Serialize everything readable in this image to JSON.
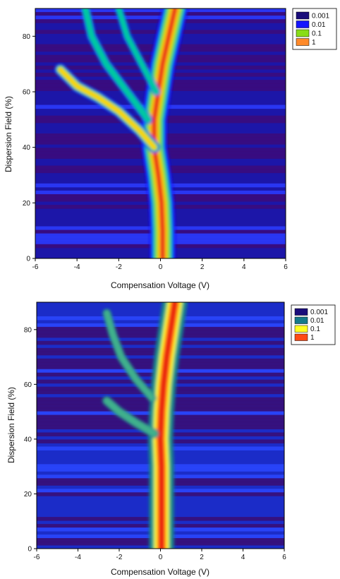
{
  "chart_data": [
    {
      "type": "heatmap",
      "title": "",
      "xlabel": "Compensation Voltage (V)",
      "ylabel": "Dispersion Field (%)",
      "xlim": [
        -6,
        6
      ],
      "ylim": [
        0,
        90
      ],
      "xticks": [
        "-6",
        "-4",
        "-2",
        "0",
        "2",
        "4",
        "6"
      ],
      "yticks": [
        "0",
        "20",
        "40",
        "60",
        "80"
      ],
      "scale": "log",
      "legend_position": "top-right outside",
      "legend": [
        {
          "label": "0.001",
          "color": "#1a0d7a"
        },
        {
          "label": "0.01",
          "color": "#1414ff"
        },
        {
          "label": "0.1",
          "color": "#88dd18"
        },
        {
          "label": "1",
          "color": "#ff8a2a"
        }
      ],
      "ridges": [
        {
          "name": "main",
          "points": [
            [
              0.1,
              0
            ],
            [
              0.1,
              10
            ],
            [
              0.05,
              20
            ],
            [
              -0.1,
              30
            ],
            [
              -0.3,
              40
            ],
            [
              -0.3,
              50
            ],
            [
              -0.1,
              60
            ],
            [
              0.1,
              70
            ],
            [
              0.4,
              80
            ],
            [
              0.7,
              90
            ]
          ],
          "intensity": 1.0
        },
        {
          "name": "branch-a",
          "points": [
            [
              -0.3,
              40
            ],
            [
              -1.0,
              46
            ],
            [
              -2.0,
              53
            ],
            [
              -3.0,
              58
            ],
            [
              -4.0,
              62
            ],
            [
              -4.8,
              68
            ]
          ],
          "intensity": 0.55
        },
        {
          "name": "branch-b",
          "points": [
            [
              -0.6,
              50
            ],
            [
              -1.6,
              60
            ],
            [
              -2.6,
              70
            ],
            [
              -3.3,
              80
            ],
            [
              -3.6,
              90
            ]
          ],
          "intensity": 0.3
        },
        {
          "name": "branch-c",
          "points": [
            [
              -0.2,
              60
            ],
            [
              -0.9,
              70
            ],
            [
              -1.6,
              80
            ],
            [
              -2.0,
              90
            ]
          ],
          "intensity": 0.2
        }
      ]
    },
    {
      "type": "heatmap",
      "title": "",
      "xlabel": "Compensation Voltage (V)",
      "ylabel": "Dispersion Field (%)",
      "xlim": [
        -6,
        6
      ],
      "ylim": [
        0,
        90
      ],
      "xticks": [
        "-6",
        "-4",
        "-2",
        "0",
        "2",
        "4",
        "6"
      ],
      "yticks": [
        "0",
        "20",
        "40",
        "60",
        "80"
      ],
      "scale": "log",
      "legend_position": "top-right outside",
      "legend": [
        {
          "label": "0.001",
          "color": "#1a0d7a"
        },
        {
          "label": "0.01",
          "color": "#157a8a"
        },
        {
          "label": "0.1",
          "color": "#ffff22"
        },
        {
          "label": "1",
          "color": "#ff4a14"
        }
      ],
      "ridges": [
        {
          "name": "main",
          "points": [
            [
              0.05,
              0
            ],
            [
              0.05,
              10
            ],
            [
              0.05,
              20
            ],
            [
              0.05,
              30
            ],
            [
              0.0,
              40
            ],
            [
              0.05,
              50
            ],
            [
              0.15,
              60
            ],
            [
              0.3,
              70
            ],
            [
              0.5,
              80
            ],
            [
              0.7,
              90
            ]
          ],
          "intensity": 1.0
        },
        {
          "name": "branch-a",
          "points": [
            [
              -0.3,
              42
            ],
            [
              -1.2,
              46
            ],
            [
              -2.0,
              50
            ],
            [
              -2.6,
              54
            ]
          ],
          "intensity": 0.3
        },
        {
          "name": "branch-b",
          "points": [
            [
              -0.4,
              55
            ],
            [
              -1.2,
              62
            ],
            [
              -1.9,
              70
            ],
            [
              -2.3,
              78
            ],
            [
              -2.6,
              86
            ]
          ],
          "intensity": 0.25
        }
      ]
    }
  ]
}
